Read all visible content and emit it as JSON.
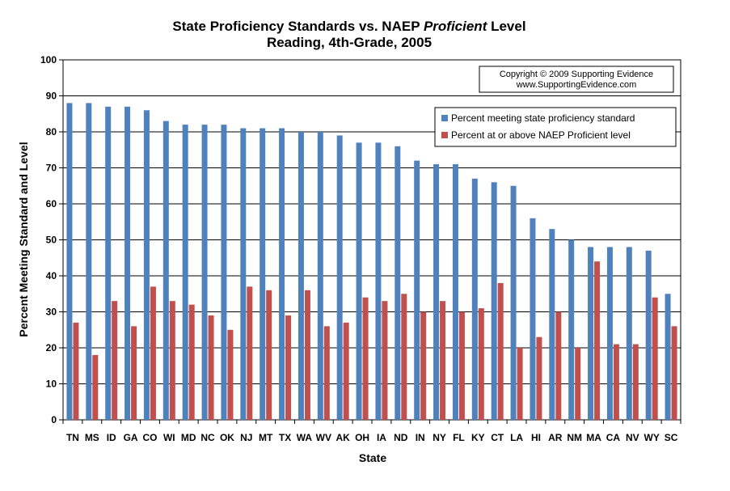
{
  "chart_data": {
    "type": "bar",
    "title_parts": [
      "State Proficiency Standards vs. NAEP ",
      "Proficient",
      " Level"
    ],
    "subtitle": "Reading, 4th-Grade, 2005",
    "xlabel": "State",
    "ylabel": "Percent Meeting Standard and Level",
    "ylim": [
      0,
      100
    ],
    "yticks": [
      0,
      10,
      20,
      30,
      40,
      50,
      60,
      70,
      80,
      90,
      100
    ],
    "grid": true,
    "legend_position": "top-right",
    "categories": [
      "TN",
      "MS",
      "ID",
      "GA",
      "CO",
      "WI",
      "MD",
      "NC",
      "OK",
      "NJ",
      "MT",
      "TX",
      "WA",
      "WV",
      "AK",
      "OH",
      "IA",
      "ND",
      "IN",
      "NY",
      "FL",
      "KY",
      "CT",
      "LA",
      "HI",
      "AR",
      "NM",
      "MA",
      "CA",
      "NV",
      "WY",
      "SC"
    ],
    "series": [
      {
        "name": "Percent meeting state proficiency standard",
        "color": "#4F81BD",
        "values": [
          88,
          88,
          87,
          87,
          86,
          83,
          82,
          82,
          82,
          81,
          81,
          81,
          80,
          80,
          79,
          77,
          77,
          76,
          72,
          71,
          71,
          67,
          66,
          65,
          56,
          53,
          50,
          48,
          48,
          48,
          47,
          35
        ]
      },
      {
        "name": "Percent at or above NAEP Proficient level",
        "color": "#C0504D",
        "values": [
          27,
          18,
          33,
          26,
          37,
          33,
          32,
          29,
          25,
          37,
          36,
          29,
          36,
          26,
          27,
          34,
          33,
          35,
          30,
          33,
          30,
          31,
          38,
          20,
          23,
          30,
          20,
          44,
          21,
          21,
          34,
          26
        ]
      }
    ]
  },
  "copyright": {
    "line1": "Copyright © 2009 Supporting Evidence",
    "line2": "www.SupportingEvidence.com"
  }
}
